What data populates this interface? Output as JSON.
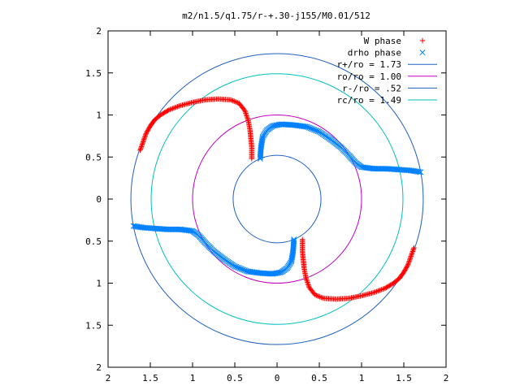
{
  "chart_data": {
    "type": "scatter",
    "title": "m2/n1.5/q1.75/r-+.30-j155/M0.01/512",
    "xlabel": "",
    "ylabel": "",
    "xlim": [
      -2,
      2
    ],
    "ylim": [
      -2,
      2
    ],
    "x_ticks": [
      "2",
      "1.5",
      "1",
      "0.5",
      "0",
      "0.5",
      "1",
      "1.5",
      "2"
    ],
    "y_ticks": [
      "2",
      "1.5",
      "1",
      "0.5",
      "0",
      "0.5",
      "1",
      "1.5",
      "2"
    ],
    "grid": false,
    "legend_position": "top-right",
    "legend": [
      {
        "label": "W phase",
        "color": "#ff0000",
        "marker": "plus"
      },
      {
        "label": "drho phase",
        "color": "#0080ff",
        "marker": "x"
      },
      {
        "label": "r+/ro = 1.73",
        "color": "#2060c0",
        "marker": "line"
      },
      {
        "label": "ro/ro = 1.00",
        "color": "#c000c0",
        "marker": "line"
      },
      {
        "label": "r-/ro = .52",
        "color": "#2060c0",
        "marker": "line"
      },
      {
        "label": "rc/ro = 1.49",
        "color": "#00c0c0",
        "marker": "line"
      }
    ],
    "circles": [
      {
        "r": 1.73,
        "color": "#2060c0"
      },
      {
        "r": 1.0,
        "color": "#c000c0"
      },
      {
        "r": 0.52,
        "color": "#2060c0"
      },
      {
        "r": 1.49,
        "color": "#00c0c0"
      }
    ],
    "series": [
      {
        "name": "W phase",
        "color": "#ff0000",
        "marker": "plus",
        "points": [
          [
            -1.62,
            0.58
          ],
          [
            -1.55,
            0.78
          ],
          [
            -1.5,
            0.87
          ],
          [
            -1.45,
            0.94
          ],
          [
            -1.38,
            1.0
          ],
          [
            -1.28,
            1.06
          ],
          [
            -1.15,
            1.11
          ],
          [
            -1.0,
            1.15
          ],
          [
            -0.85,
            1.18
          ],
          [
            -0.7,
            1.19
          ],
          [
            -0.55,
            1.18
          ],
          [
            -0.45,
            1.14
          ],
          [
            -0.38,
            1.05
          ],
          [
            -0.34,
            0.93
          ],
          [
            -0.32,
            0.82
          ],
          [
            -0.31,
            0.72
          ],
          [
            -0.3,
            0.62
          ],
          [
            -0.3,
            0.48
          ],
          [
            1.62,
            -0.58
          ],
          [
            1.55,
            -0.78
          ],
          [
            1.5,
            -0.87
          ],
          [
            1.45,
            -0.94
          ],
          [
            1.38,
            -1.0
          ],
          [
            1.28,
            -1.06
          ],
          [
            1.15,
            -1.11
          ],
          [
            1.0,
            -1.15
          ],
          [
            0.85,
            -1.18
          ],
          [
            0.7,
            -1.19
          ],
          [
            0.55,
            -1.18
          ],
          [
            0.45,
            -1.14
          ],
          [
            0.38,
            -1.05
          ],
          [
            0.34,
            -0.93
          ],
          [
            0.32,
            -0.82
          ],
          [
            0.31,
            -0.72
          ],
          [
            0.3,
            -0.62
          ],
          [
            0.3,
            -0.48
          ]
        ]
      },
      {
        "name": "drho phase",
        "color": "#0080ff",
        "marker": "x",
        "points": [
          [
            -0.2,
            0.48
          ],
          [
            -0.19,
            0.62
          ],
          [
            -0.17,
            0.74
          ],
          [
            -0.12,
            0.82
          ],
          [
            -0.05,
            0.87
          ],
          [
            0.05,
            0.89
          ],
          [
            0.2,
            0.88
          ],
          [
            0.35,
            0.86
          ],
          [
            0.5,
            0.8
          ],
          [
            0.62,
            0.72
          ],
          [
            0.75,
            0.62
          ],
          [
            0.85,
            0.52
          ],
          [
            0.93,
            0.43
          ],
          [
            1.0,
            0.38
          ],
          [
            1.15,
            0.36
          ],
          [
            1.3,
            0.36
          ],
          [
            1.45,
            0.35
          ],
          [
            1.58,
            0.34
          ],
          [
            1.7,
            0.32
          ],
          [
            0.2,
            -0.48
          ],
          [
            0.19,
            -0.62
          ],
          [
            0.17,
            -0.74
          ],
          [
            0.12,
            -0.82
          ],
          [
            0.05,
            -0.87
          ],
          [
            -0.05,
            -0.89
          ],
          [
            -0.2,
            -0.88
          ],
          [
            -0.35,
            -0.86
          ],
          [
            -0.5,
            -0.8
          ],
          [
            -0.62,
            -0.72
          ],
          [
            -0.75,
            -0.62
          ],
          [
            -0.85,
            -0.52
          ],
          [
            -0.93,
            -0.43
          ],
          [
            -1.0,
            -0.38
          ],
          [
            -1.15,
            -0.36
          ],
          [
            -1.3,
            -0.36
          ],
          [
            -1.45,
            -0.35
          ],
          [
            -1.58,
            -0.34
          ],
          [
            -1.7,
            -0.32
          ]
        ]
      }
    ]
  }
}
